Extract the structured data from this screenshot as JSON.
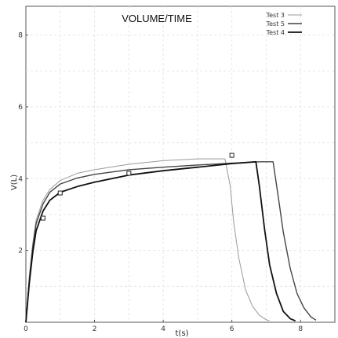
{
  "chart_data": {
    "type": "line",
    "title": "VOLUME/TIME",
    "xlabel": "t(s)",
    "ylabel": "V(L)",
    "xlim": [
      0,
      9
    ],
    "ylim": [
      0,
      8.8
    ],
    "x_ticks": [
      0,
      2,
      4,
      6,
      8
    ],
    "y_ticks": [
      2,
      4,
      6,
      8
    ],
    "grid": true,
    "legend_position": "top-right",
    "series": [
      {
        "name": "Test 3",
        "color": "#999999",
        "x": [
          0,
          0.1,
          0.2,
          0.3,
          0.5,
          0.7,
          1.0,
          1.5,
          2.0,
          3.0,
          4.0,
          5.0,
          5.8,
          5.95,
          6.05,
          6.2,
          6.4,
          6.6,
          6.8,
          7.0,
          7.1
        ],
        "y": [
          0,
          1.3,
          2.2,
          2.85,
          3.4,
          3.7,
          3.95,
          4.15,
          4.25,
          4.4,
          4.5,
          4.55,
          4.55,
          3.8,
          2.8,
          1.8,
          0.9,
          0.45,
          0.2,
          0.07,
          0.04
        ]
      },
      {
        "name": "Test 5",
        "color": "#444444",
        "x": [
          0,
          0.1,
          0.2,
          0.3,
          0.5,
          0.7,
          1.0,
          1.5,
          2.0,
          3.0,
          4.0,
          5.0,
          6.0,
          6.8,
          7.2,
          7.35,
          7.5,
          7.7,
          7.9,
          8.1,
          8.3,
          8.45
        ],
        "y": [
          0,
          1.2,
          2.1,
          2.75,
          3.3,
          3.62,
          3.85,
          4.02,
          4.12,
          4.25,
          4.32,
          4.38,
          4.43,
          4.47,
          4.47,
          3.5,
          2.5,
          1.5,
          0.8,
          0.4,
          0.15,
          0.06
        ]
      },
      {
        "name": "Test 4",
        "color": "#111111",
        "x": [
          0,
          0.1,
          0.2,
          0.3,
          0.5,
          0.7,
          1.0,
          1.5,
          2.0,
          3.0,
          4.0,
          5.0,
          6.0,
          6.7,
          6.8,
          6.95,
          7.1,
          7.3,
          7.5,
          7.7,
          7.85
        ],
        "y": [
          0,
          1.1,
          1.95,
          2.55,
          3.1,
          3.4,
          3.62,
          3.78,
          3.9,
          4.1,
          4.22,
          4.32,
          4.42,
          4.47,
          3.8,
          2.6,
          1.6,
          0.8,
          0.3,
          0.1,
          0.04
        ]
      }
    ],
    "markers": {
      "shape": "square",
      "points": [
        {
          "x": 0.5,
          "y": 2.9
        },
        {
          "x": 1.0,
          "y": 3.6
        },
        {
          "x": 3.0,
          "y": 4.15
        },
        {
          "x": 6.0,
          "y": 4.65
        }
      ]
    }
  }
}
